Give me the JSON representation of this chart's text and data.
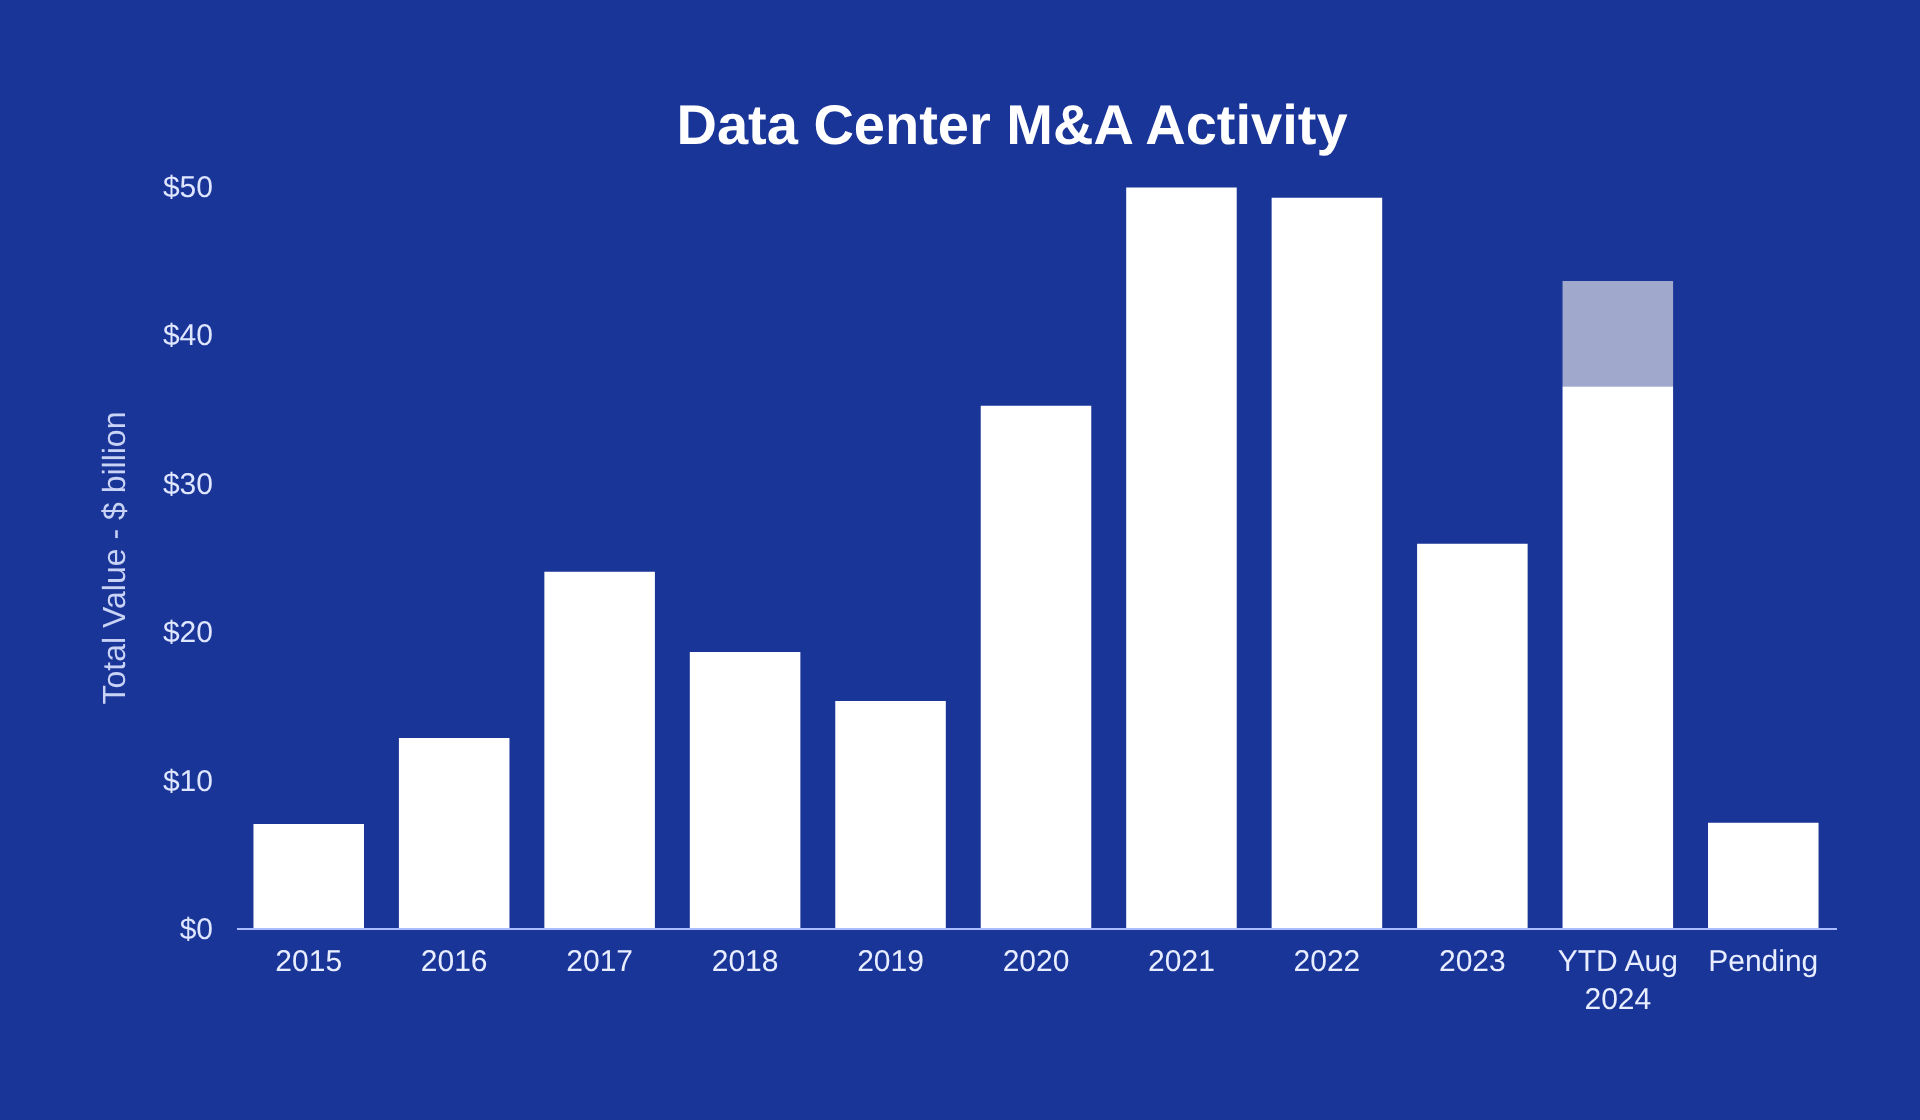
{
  "chart_data": {
    "type": "bar",
    "title": "Data Center M&A Activity",
    "ylabel": "Total Value - $ billion",
    "categories": [
      "2015",
      "2016",
      "2017",
      "2018",
      "2019",
      "2020",
      "2021",
      "2022",
      "2023",
      "YTD Aug 2024",
      "Pending"
    ],
    "stacked": true,
    "series": [
      {
        "color": "#ffffff",
        "values": [
          7.0,
          12.8,
          24.0,
          18.6,
          15.3,
          35.2,
          49.9,
          49.2,
          25.9,
          36.5,
          7.1
        ]
      },
      {
        "color": "#a0a9cc",
        "values": [
          null,
          null,
          null,
          null,
          null,
          null,
          null,
          null,
          null,
          7.1,
          null
        ]
      }
    ],
    "ylim": [
      0,
      50
    ],
    "yticks": [
      {
        "value": 0,
        "label": "$0"
      },
      {
        "value": 10,
        "label": "$10"
      },
      {
        "value": 20,
        "label": "$20"
      },
      {
        "value": 30,
        "label": "$30"
      },
      {
        "value": 40,
        "label": "$40"
      },
      {
        "value": 50,
        "label": "$50"
      }
    ]
  }
}
